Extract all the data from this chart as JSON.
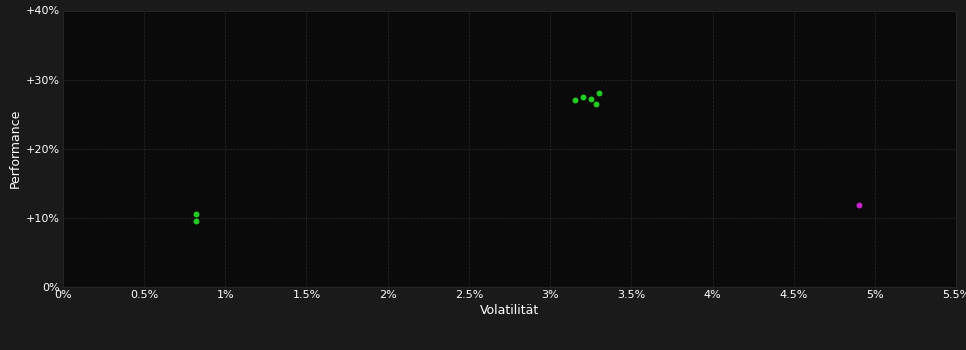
{
  "background_color": "#1a1a1a",
  "plot_bg_color": "#0a0a0a",
  "grid_color": "#2a2a2a",
  "xlabel": "Volatilität",
  "ylabel": "Performance",
  "xlim": [
    0.0,
    0.055
  ],
  "ylim": [
    0.0,
    0.4
  ],
  "xticks": [
    0.0,
    0.005,
    0.01,
    0.015,
    0.02,
    0.025,
    0.03,
    0.035,
    0.04,
    0.045,
    0.05,
    0.055
  ],
  "yticks": [
    0.0,
    0.1,
    0.2,
    0.3,
    0.4
  ],
  "ytick_labels": [
    "0%",
    "+10%",
    "+20%",
    "+30%",
    "+40%"
  ],
  "xtick_labels": [
    "0%",
    "0.5%",
    "1%",
    "1.5%",
    "2%",
    "2.5%",
    "3%",
    "3.5%",
    "4%",
    "4.5%",
    "5%",
    "5.5%"
  ],
  "green_points": [
    [
      0.0082,
      0.105
    ],
    [
      0.0082,
      0.096
    ],
    [
      0.0315,
      0.27
    ],
    [
      0.032,
      0.275
    ],
    [
      0.0325,
      0.272
    ],
    [
      0.0328,
      0.265
    ],
    [
      0.033,
      0.28
    ]
  ],
  "magenta_points": [
    [
      0.049,
      0.118
    ]
  ],
  "green_color": "#22cc22",
  "magenta_color": "#cc22cc",
  "marker_size": 18,
  "font_color": "#ffffff",
  "label_fontsize": 9,
  "tick_fontsize": 8
}
